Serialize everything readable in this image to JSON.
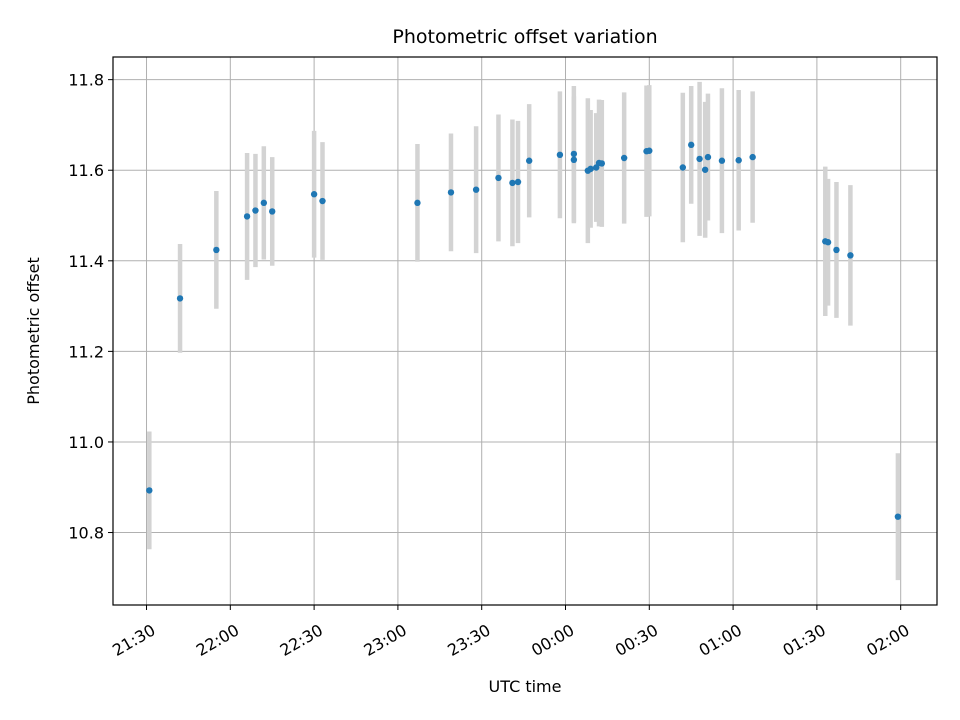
{
  "chart_data": {
    "type": "scatter",
    "title": "Photometric offset variation",
    "xlabel": "UTC time",
    "ylabel": "Photometric offset",
    "grid": true,
    "x_ticks": [
      "21:30",
      "22:00",
      "22:30",
      "23:00",
      "23:30",
      "00:00",
      "00:30",
      "01:00",
      "01:30",
      "02:00"
    ],
    "x_tick_minutes": [
      1290,
      1320,
      1350,
      1380,
      1410,
      1440,
      1470,
      1500,
      1530,
      1560
    ],
    "y_ticks": [
      "10.8",
      "11.0",
      "11.2",
      "11.4",
      "11.6",
      "11.8"
    ],
    "y_tick_values": [
      10.8,
      11.0,
      11.2,
      11.4,
      11.6,
      11.8
    ],
    "xlim_minutes": [
      1278,
      1573
    ],
    "ylim": [
      10.64,
      11.85
    ],
    "colors": {
      "points": "#1f77b4",
      "errorbars": "#d3d3d3"
    },
    "series": [
      {
        "points": [
          {
            "time": "21:31",
            "y": 10.893,
            "err": 0.13
          },
          {
            "time": "21:42",
            "y": 11.317,
            "err": 0.12
          },
          {
            "time": "21:55",
            "y": 11.424,
            "err": 0.13
          },
          {
            "time": "22:06",
            "y": 11.498,
            "err": 0.14
          },
          {
            "time": "22:09",
            "y": 11.511,
            "err": 0.125
          },
          {
            "time": "22:12",
            "y": 11.528,
            "err": 0.125
          },
          {
            "time": "22:15",
            "y": 11.509,
            "err": 0.12
          },
          {
            "time": "22:30",
            "y": 11.547,
            "err": 0.14
          },
          {
            "time": "22:33",
            "y": 11.532,
            "err": 0.13
          },
          {
            "time": "23:07",
            "y": 11.528,
            "err": 0.13
          },
          {
            "time": "23:19",
            "y": 11.551,
            "err": 0.13
          },
          {
            "time": "23:28",
            "y": 11.557,
            "err": 0.14
          },
          {
            "time": "23:36",
            "y": 11.583,
            "err": 0.14
          },
          {
            "time": "23:41",
            "y": 11.572,
            "err": 0.14
          },
          {
            "time": "23:43",
            "y": 11.574,
            "err": 0.135
          },
          {
            "time": "23:47",
            "y": 11.621,
            "err": 0.125
          },
          {
            "time": "23:58",
            "y": 11.634,
            "err": 0.14
          },
          {
            "time": "00:03",
            "y": 11.636,
            "err": 0.15
          },
          {
            "time": "00:03",
            "y": 11.623,
            "err": 0.14
          },
          {
            "time": "00:08",
            "y": 11.599,
            "err": 0.16
          },
          {
            "time": "00:09",
            "y": 11.603,
            "err": 0.13
          },
          {
            "time": "00:11",
            "y": 11.606,
            "err": 0.12
          },
          {
            "time": "00:12",
            "y": 11.616,
            "err": 0.14
          },
          {
            "time": "00:13",
            "y": 11.615,
            "err": 0.14
          },
          {
            "time": "00:21",
            "y": 11.627,
            "err": 0.145
          },
          {
            "time": "00:29",
            "y": 11.642,
            "err": 0.145
          },
          {
            "time": "00:30",
            "y": 11.643,
            "err": 0.145
          },
          {
            "time": "00:42",
            "y": 11.606,
            "err": 0.165
          },
          {
            "time": "00:45",
            "y": 11.656,
            "err": 0.13
          },
          {
            "time": "00:48",
            "y": 11.625,
            "err": 0.17
          },
          {
            "time": "00:50",
            "y": 11.601,
            "err": 0.15
          },
          {
            "time": "00:51",
            "y": 11.629,
            "err": 0.14
          },
          {
            "time": "00:56",
            "y": 11.621,
            "err": 0.16
          },
          {
            "time": "01:02",
            "y": 11.622,
            "err": 0.155
          },
          {
            "time": "01:07",
            "y": 11.629,
            "err": 0.145
          },
          {
            "time": "01:33",
            "y": 11.443,
            "err": 0.165
          },
          {
            "time": "01:34",
            "y": 11.441,
            "err": 0.14
          },
          {
            "time": "01:37",
            "y": 11.424,
            "err": 0.15
          },
          {
            "time": "01:42",
            "y": 11.412,
            "err": 0.155
          },
          {
            "time": "01:59",
            "y": 10.835,
            "err": 0.14
          }
        ]
      }
    ]
  }
}
